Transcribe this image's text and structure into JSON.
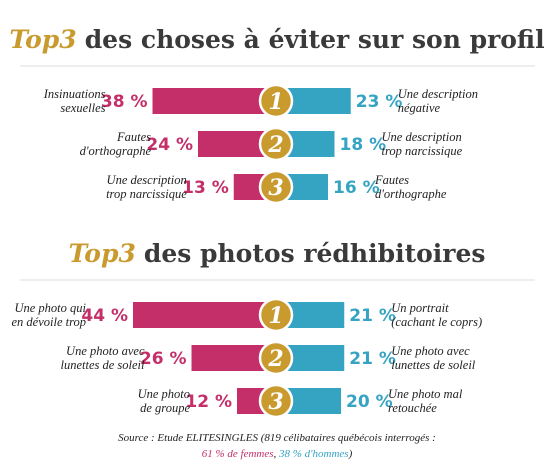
{
  "chart_data": [
    {
      "type": "diverging-bar",
      "title_highlight": "Top3",
      "title": "des choses à éviter sur son profil",
      "categories": [
        "1",
        "2",
        "3"
      ],
      "left_labels": [
        "Insinuations\nsexuelles",
        "Fautes\nd'orthographe",
        "Une description\ntrop narcissique"
      ],
      "right_labels": [
        "Une description\nnégative",
        "Une description\ntrop narcissique",
        "Fautes\nd'orthographe"
      ],
      "series": [
        {
          "color": "#c42f6a",
          "side": "left",
          "values": [
            38,
            24,
            13
          ],
          "value_labels": [
            "38 %",
            "24 %",
            "13 %"
          ]
        },
        {
          "color": "#35a3c2",
          "side": "right",
          "values": [
            23,
            18,
            16
          ],
          "value_labels": [
            "23 %",
            "18 %",
            "16 %"
          ]
        }
      ]
    },
    {
      "type": "diverging-bar",
      "title_highlight": "Top3",
      "title": "des photos rédhibitoires",
      "categories": [
        "1",
        "2",
        "3"
      ],
      "left_labels": [
        "Une photo qui\nen dévoile trop",
        "Une photo avec\nlunettes de soleil",
        "Une photo\nde groupe"
      ],
      "right_labels": [
        "Un portrait\n(cachant le coprs)",
        "Une photo avec\nlunettes de soleil",
        "Une photo mal\nretouchée"
      ],
      "series": [
        {
          "color": "#c42f6a",
          "side": "left",
          "values": [
            44,
            26,
            12
          ],
          "value_labels": [
            "44 %",
            "26 %",
            "12 %"
          ]
        },
        {
          "color": "#35a3c2",
          "side": "right",
          "values": [
            21,
            21,
            20
          ],
          "value_labels": [
            "21 %",
            "21 %",
            "20 %"
          ]
        }
      ]
    }
  ],
  "footer": {
    "source": "Source : Etude ELITESINGLES (819 célibataires québécois interrogés :",
    "women": "61 % de femmes",
    "sep": ", ",
    "men": "38 % d'hommes",
    "end": ")"
  }
}
